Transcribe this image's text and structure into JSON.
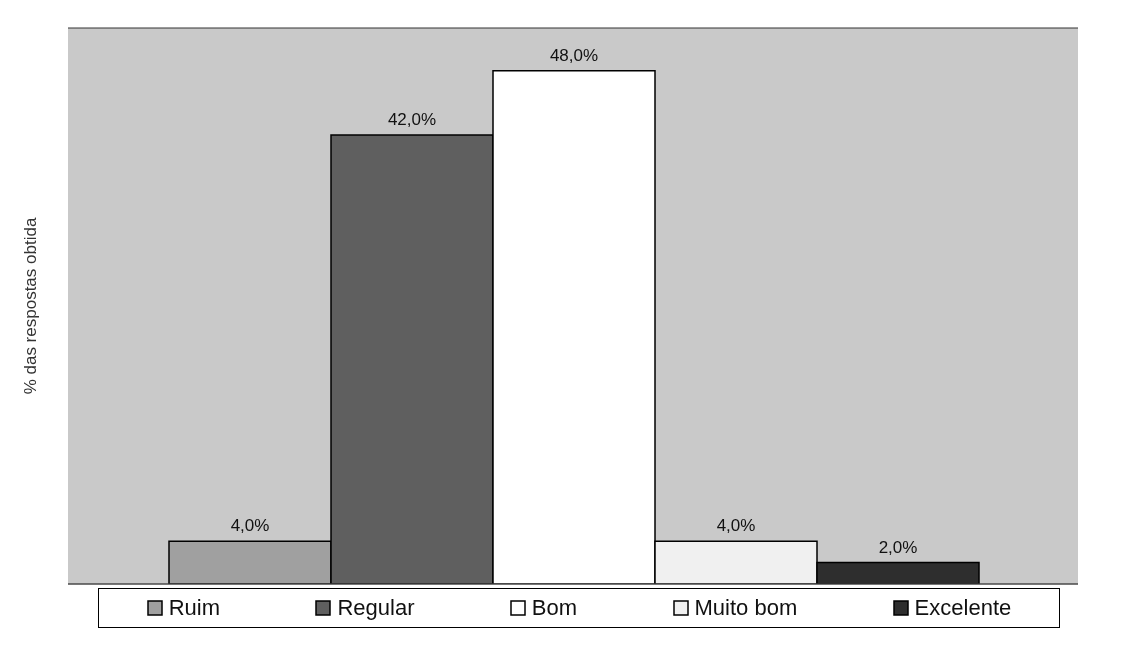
{
  "chart_data": {
    "type": "bar",
    "ylabel": "% das respostas obtida",
    "categories": [
      null
    ],
    "series": [
      {
        "name": "Ruim",
        "color": "#a0a0a0",
        "values": [
          4
        ],
        "value_labels": [
          "4,0%"
        ]
      },
      {
        "name": "Regular",
        "color": "#5f5f5f",
        "values": [
          42
        ],
        "value_labels": [
          "42,0%"
        ]
      },
      {
        "name": "Bom",
        "color": "#ffffff",
        "values": [
          48
        ],
        "value_labels": [
          "48,0%"
        ]
      },
      {
        "name": "Muito bom",
        "color": "#f0f0f0",
        "values": [
          4
        ],
        "value_labels": [
          "4,0%"
        ]
      },
      {
        "name": "Excelente",
        "color": "#2e2e2e",
        "values": [
          2
        ],
        "value_labels": [
          "2,0%"
        ]
      }
    ],
    "ylim": [
      0,
      52
    ],
    "grid": "y",
    "legend": "bottom",
    "tick_labels": false
  }
}
